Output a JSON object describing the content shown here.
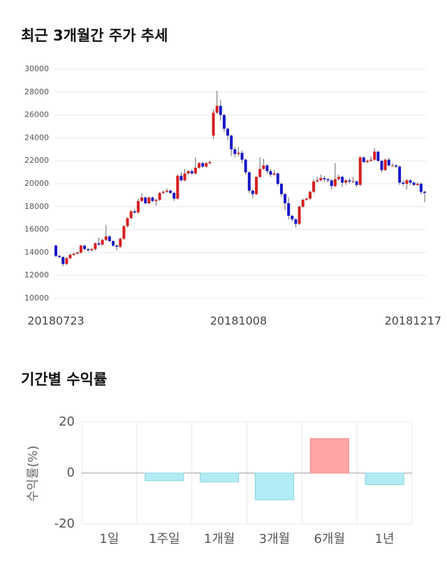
{
  "chart_data": [
    {
      "type": "candlestick",
      "title": "최근 3개월간 주가 추세",
      "categories": [
        "20180723",
        null,
        null,
        null,
        null,
        null,
        null,
        null,
        null,
        null,
        null,
        null,
        null,
        null,
        null,
        null,
        null,
        null,
        null,
        null,
        null,
        null,
        null,
        null,
        null,
        null,
        null,
        null,
        null,
        null,
        null,
        null,
        null,
        null,
        null,
        null,
        null,
        null,
        null,
        null,
        null,
        null,
        null,
        null,
        null,
        null,
        null,
        null,
        null,
        null,
        null,
        "20181008",
        null,
        null,
        null,
        null,
        null,
        null,
        null,
        null,
        null,
        null,
        null,
        null,
        null,
        null,
        null,
        null,
        null,
        null,
        null,
        null,
        null,
        null,
        null,
        null,
        null,
        null,
        null,
        null,
        null,
        null,
        null,
        null,
        null,
        null,
        null,
        null,
        null,
        null,
        null,
        null,
        null,
        null,
        null,
        null,
        null,
        null,
        null,
        null,
        null,
        null,
        null,
        "20181217"
      ],
      "open": [
        14600,
        13700,
        13600,
        13000,
        13500,
        13800,
        13900,
        14000,
        14600,
        14300,
        14200,
        14300,
        14800,
        14700,
        15100,
        15400,
        15000,
        14600,
        14500,
        15200,
        16300,
        17000,
        17600,
        17500,
        18500,
        18800,
        18300,
        18800,
        18500,
        18600,
        19200,
        19300,
        19400,
        19200,
        18700,
        20700,
        20300,
        20900,
        21100,
        20900,
        21400,
        21800,
        21500,
        21800,
        24200,
        26200,
        26800,
        26000,
        24800,
        24200,
        23000,
        22600,
        22700,
        22100,
        21000,
        19400,
        19100,
        20600,
        21300,
        21600,
        21100,
        20800,
        20900,
        20000,
        19100,
        18300,
        17200,
        16900,
        16500,
        18000,
        18600,
        18700,
        19300,
        20200,
        20300,
        20500,
        20400,
        20300,
        19800,
        20400,
        20600,
        20100,
        20300,
        20200,
        20200,
        19900,
        22300,
        21900,
        22000,
        22100,
        22800,
        22000,
        21200,
        22100,
        21600,
        21600,
        21500,
        20100,
        20000,
        20300,
        20100,
        19900,
        20000,
        19300
      ],
      "high": [
        14700,
        13800,
        13700,
        13600,
        13900,
        14000,
        14100,
        14700,
        14700,
        14400,
        14400,
        14900,
        15300,
        15200,
        16400,
        15500,
        15100,
        14700,
        15300,
        16400,
        17100,
        17700,
        17800,
        18700,
        19200,
        18900,
        18900,
        18900,
        18700,
        19300,
        19400,
        19600,
        19500,
        19300,
        20800,
        21000,
        21300,
        21200,
        21300,
        22300,
        21900,
        21900,
        21900,
        22000,
        26500,
        28100,
        27300,
        26100,
        24900,
        24300,
        23200,
        23200,
        22900,
        22200,
        21100,
        19500,
        20700,
        22300,
        22200,
        21700,
        21300,
        21200,
        21000,
        20100,
        19200,
        18800,
        17300,
        17000,
        18100,
        18700,
        18800,
        19400,
        20400,
        20600,
        20800,
        20700,
        20500,
        20400,
        21800,
        20800,
        20700,
        20400,
        20500,
        20600,
        20300,
        22400,
        22400,
        22100,
        22400,
        23100,
        22900,
        22100,
        22200,
        22300,
        21800,
        21700,
        21600,
        20300,
        20400,
        20400,
        20200,
        20100,
        20100,
        19400
      ],
      "low": [
        13600,
        13500,
        12800,
        12900,
        13400,
        13700,
        13800,
        13900,
        14200,
        14100,
        14100,
        14200,
        14600,
        14600,
        15000,
        14900,
        14500,
        14200,
        14400,
        15100,
        16200,
        16900,
        17400,
        17400,
        18400,
        18200,
        18200,
        18400,
        18100,
        18500,
        19100,
        19200,
        19100,
        18500,
        18600,
        20200,
        20200,
        20800,
        20800,
        20800,
        21300,
        21400,
        21400,
        21700,
        23900,
        26100,
        25500,
        24500,
        23800,
        22400,
        22300,
        22400,
        21800,
        20800,
        19200,
        18700,
        19000,
        20500,
        21200,
        20900,
        20600,
        20700,
        19800,
        18900,
        17700,
        16900,
        16700,
        16200,
        16400,
        17900,
        18500,
        18600,
        19200,
        20100,
        20200,
        20200,
        20100,
        19500,
        19700,
        20300,
        19700,
        19900,
        20000,
        20100,
        19700,
        19800,
        21800,
        21800,
        21900,
        22000,
        21900,
        21000,
        21100,
        21500,
        21500,
        21400,
        19900,
        19800,
        19500,
        19900,
        19800,
        19800,
        19100,
        18400
      ],
      "close": [
        13700,
        13600,
        13000,
        13500,
        13800,
        13900,
        14000,
        14600,
        14300,
        14200,
        14300,
        14800,
        14700,
        15100,
        15400,
        15000,
        14600,
        14500,
        15200,
        16300,
        17000,
        17600,
        17500,
        18500,
        18800,
        18300,
        18800,
        18500,
        18600,
        19200,
        19300,
        19400,
        19200,
        18700,
        20700,
        20300,
        20900,
        21100,
        20900,
        21400,
        21800,
        21500,
        21800,
        21900,
        26200,
        26800,
        26000,
        24800,
        24200,
        23000,
        22600,
        22700,
        22100,
        21000,
        19400,
        19100,
        20600,
        21300,
        21600,
        21100,
        20800,
        20900,
        20000,
        19100,
        18300,
        17200,
        16900,
        16500,
        18000,
        18600,
        18700,
        19300,
        20200,
        20300,
        20500,
        20400,
        20300,
        19800,
        20400,
        20600,
        20100,
        20300,
        20200,
        20200,
        19900,
        22300,
        21900,
        22000,
        22100,
        22800,
        22000,
        21200,
        22100,
        21600,
        21600,
        21500,
        20100,
        20000,
        20300,
        20100,
        19900,
        20000,
        19300,
        19200
      ],
      "up_color": "#d71e1e",
      "down_color": "#1717c9",
      "ylim": [
        10000,
        30000
      ],
      "yticks": [
        10000,
        12000,
        14000,
        16000,
        18000,
        20000,
        22000,
        24000,
        26000,
        28000,
        30000
      ],
      "grid": true
    },
    {
      "type": "bar",
      "title": "기간별 수익률",
      "y_label": "수익률(%)",
      "categories": [
        "1일",
        "1주일",
        "1개월",
        "3개월",
        "6개월",
        "1년"
      ],
      "values": [
        0,
        -3,
        -3.5,
        -10.5,
        13.5,
        -4.5
      ],
      "colors": [
        "#b2ebf4",
        "#b2ebf4",
        "#b2ebf4",
        "#b2ebf4",
        "#ffa5a5",
        "#b2ebf4"
      ],
      "ylim": [
        -20,
        20
      ],
      "yticks": [
        -20,
        0,
        20
      ],
      "grid": true
    }
  ]
}
